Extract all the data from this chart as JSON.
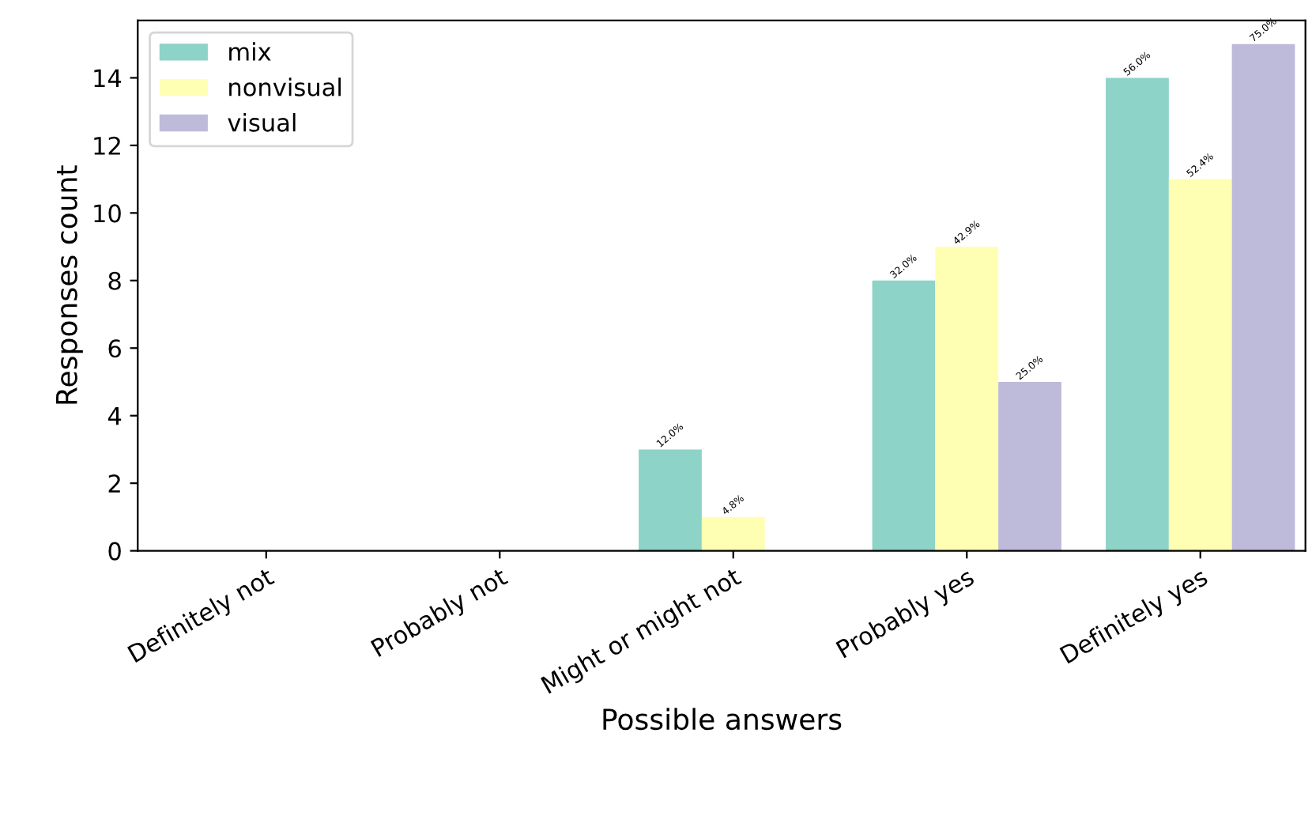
{
  "chart_data": {
    "type": "bar",
    "xlabel": "Possible answers",
    "ylabel": "Responses count",
    "categories": [
      "Definitely not",
      "Probably not",
      "Might or might not",
      "Probably yes",
      "Definitely yes"
    ],
    "series": [
      {
        "name": "mix",
        "color": "#8dd3c7",
        "values": [
          0,
          0,
          3,
          8,
          14
        ]
      },
      {
        "name": "nonvisual",
        "color": "#ffffb3",
        "values": [
          0,
          0,
          1,
          9,
          11
        ]
      },
      {
        "name": "visual",
        "color": "#bebada",
        "values": [
          0,
          0,
          0,
          5,
          15
        ]
      }
    ],
    "annotations": [
      "12.0%",
      "32.0%",
      "56.0%",
      "4.8%",
      "42.9%",
      "52.4%",
      "25.0%",
      "75.0%"
    ],
    "ylim": [
      0,
      15.7
    ],
    "yticks": [
      0,
      2,
      4,
      6,
      8,
      10,
      12,
      14
    ],
    "legend": "top left",
    "grid": false
  }
}
